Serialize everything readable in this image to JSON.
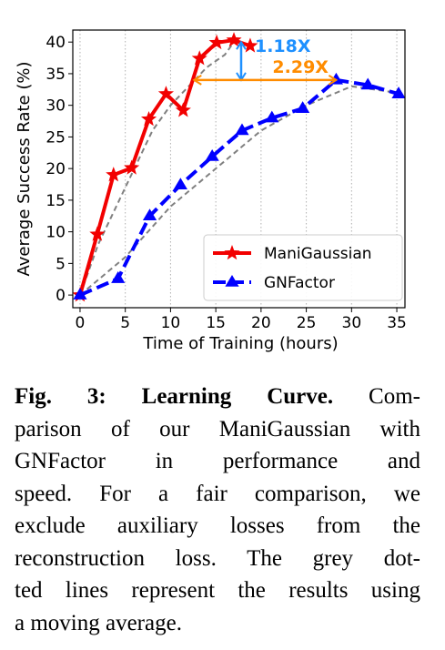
{
  "chart_data": {
    "type": "line",
    "xlabel": "Time of Training (hours)",
    "ylabel": "Average Success Rate (%)",
    "xlim": [
      -0.8,
      35.9
    ],
    "ylim": [
      -2,
      41.9
    ],
    "xticks": [
      0,
      5,
      10,
      15,
      20,
      25,
      30,
      35
    ],
    "yticks": [
      0,
      5,
      10,
      15,
      20,
      25,
      30,
      35,
      40
    ],
    "grid": "x",
    "legend": "lower right",
    "series": [
      {
        "name": "ManiGaussian",
        "color": "#f20000",
        "marker": "star",
        "x": [
          0,
          1.9,
          3.7,
          5.7,
          7.6,
          9.5,
          11.4,
          13.2,
          15.1,
          17,
          18.8
        ],
        "values": [
          0,
          9.6,
          19,
          20.1,
          27.8,
          31.8,
          29.2,
          37.4,
          39.9,
          40.3,
          39.4
        ]
      },
      {
        "name": "GNFactor",
        "color": "#0000ff",
        "marker": "triangle",
        "x": [
          0,
          4.2,
          7.7,
          11.1,
          14.6,
          17.9,
          21.2,
          24.6,
          28.3,
          31.8,
          35.2
        ],
        "values": [
          0,
          2.6,
          12.5,
          17.4,
          21.9,
          26,
          28,
          29.5,
          34,
          33.2,
          31.8
        ]
      }
    ],
    "moving_average": [
      {
        "color": "#808080",
        "x": [
          0,
          2,
          4,
          6,
          8,
          10,
          12,
          14,
          16,
          17
        ],
        "values": [
          0,
          8,
          14,
          20,
          26,
          30,
          33,
          36,
          38,
          40
        ]
      },
      {
        "color": "#808080",
        "x": [
          0,
          5,
          10,
          15,
          20,
          25,
          30,
          35
        ],
        "values": [
          0,
          6,
          14,
          20,
          26,
          30,
          33,
          32
        ]
      }
    ],
    "annotations": [
      {
        "text": "1.18X",
        "color": "#1e90ff",
        "x": 17.8,
        "y1": 40,
        "y2": 34
      },
      {
        "text": "2.29X",
        "color": "#ff8c00",
        "y": 34,
        "x1": 12.6,
        "x2": 28.3
      }
    ]
  },
  "caption": {
    "label": "Fig. 3: Learning Curve.",
    "lines": [
      "Com-",
      "parison of our ManiGaussian with",
      "GNFactor in performance and",
      "speed. For a fair comparison, we",
      "exclude auxiliary losses from the",
      "reconstruction loss. The grey dot-",
      "ted lines represent the results using",
      "a moving average."
    ]
  }
}
